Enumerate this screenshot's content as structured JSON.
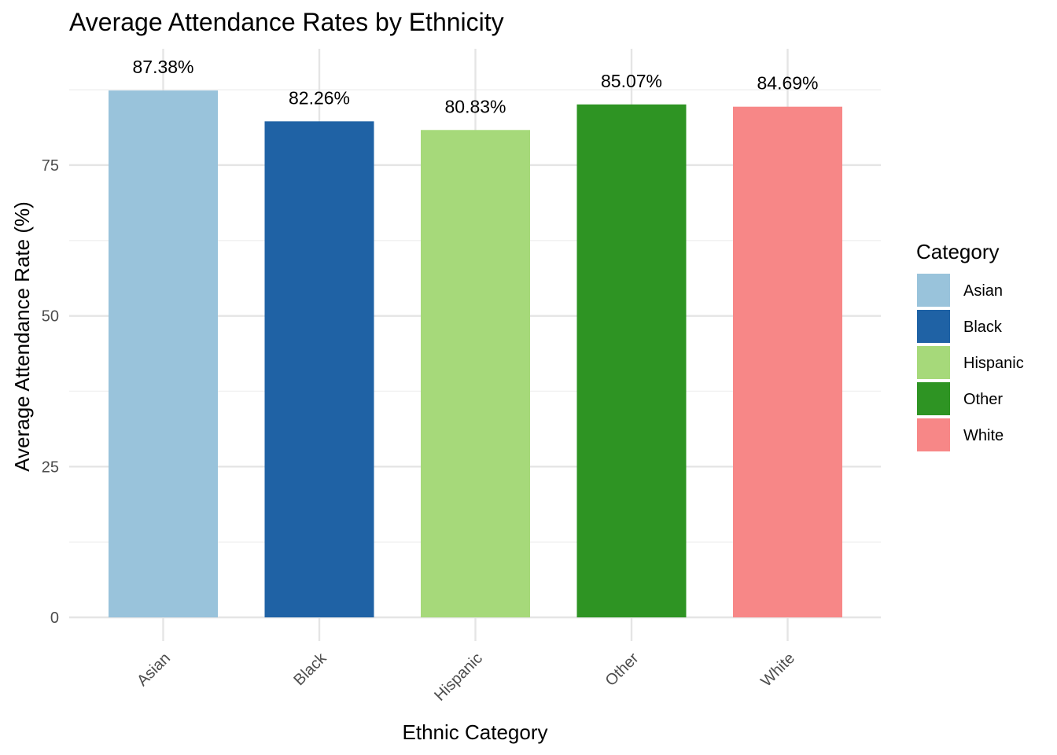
{
  "chart_data": {
    "type": "bar",
    "title": "Average Attendance Rates by Ethnicity",
    "xlabel": "Ethnic Category",
    "ylabel": "Average Attendance Rate (%)",
    "categories": [
      "Asian",
      "Black",
      "Hispanic",
      "Other",
      "White"
    ],
    "values": [
      87.38,
      82.26,
      80.83,
      85.07,
      84.69
    ],
    "data_labels": [
      "87.38%",
      "82.26%",
      "80.83%",
      "85.07%",
      "84.69%"
    ],
    "colors": [
      "#99c3db",
      "#1f62a5",
      "#a6d97a",
      "#2e9423",
      "#f78787"
    ],
    "ylim": [
      0,
      94.3
    ],
    "yticks": [
      0,
      25,
      50,
      75
    ],
    "grid": true,
    "legend": {
      "title": "Category",
      "placement": "right",
      "entries": [
        "Asian",
        "Black",
        "Hispanic",
        "Other",
        "White"
      ]
    }
  }
}
